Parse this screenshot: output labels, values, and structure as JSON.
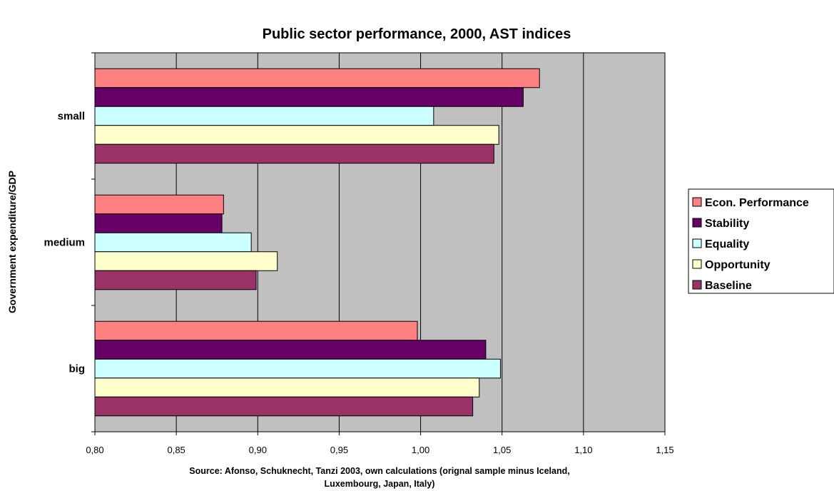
{
  "chart_data": {
    "type": "bar",
    "orientation": "horizontal",
    "title": "Public sector performance, 2000, AST indices",
    "ylabel": "Government expenditure/GDP",
    "xlabel_lines": [
      "Source: Afonso, Schuknecht, Tanzi 2003, own calculations (orignal sample minus Iceland,",
      "Luxembourg, Japan, Italy)"
    ],
    "categories": [
      "small",
      "medium",
      "big"
    ],
    "xlim": [
      0.8,
      1.15
    ],
    "xticks": [
      "0,80",
      "0,85",
      "0,90",
      "0,95",
      "1,00",
      "1,05",
      "1,10",
      "1,15"
    ],
    "grid": "vertical",
    "legend_position": "right",
    "plot_background": "#C0C0C0",
    "series": [
      {
        "name": "Econ. Performance",
        "color": "#FF8080",
        "values": [
          1.073,
          0.879,
          0.998
        ]
      },
      {
        "name": "Stability",
        "color": "#660066",
        "values": [
          1.063,
          0.878,
          1.04
        ]
      },
      {
        "name": "Equality",
        "color": "#CCFFFF",
        "values": [
          1.008,
          0.896,
          1.049
        ]
      },
      {
        "name": "Opportunity",
        "color": "#FFFFCC",
        "values": [
          1.048,
          0.912,
          1.036
        ]
      },
      {
        "name": "Baseline",
        "color": "#993366",
        "values": [
          1.045,
          0.899,
          1.032
        ]
      }
    ]
  }
}
